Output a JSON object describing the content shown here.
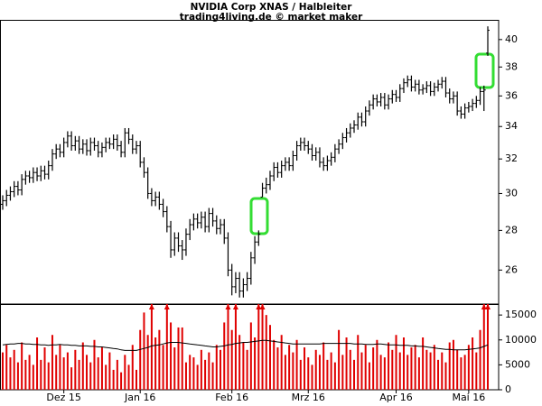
{
  "chart_data": [
    {
      "type": "ohlc",
      "title": "NVIDIA Corp XNAS / Halbleiter",
      "subtitle": "trading4living.de © market maker",
      "log": true,
      "color": "#000000",
      "ylim": [
        24.4,
        41.5
      ],
      "yticks": [
        26,
        28,
        30,
        32,
        34,
        36,
        38,
        40
      ],
      "open": [
        29.4,
        29.6,
        29.9,
        30.1,
        30.4,
        30.2,
        30.8,
        31.0,
        30.9,
        31.2,
        31.0,
        31.3,
        31.1,
        31.6,
        32.3,
        32.6,
        32.4,
        33.0,
        33.4,
        32.8,
        33.1,
        32.6,
        32.9,
        32.5,
        33.0,
        32.8,
        32.4,
        32.7,
        33.0,
        32.9,
        33.2,
        32.8,
        32.4,
        33.6,
        33.2,
        32.6,
        32.8,
        31.8,
        31.2,
        30.0,
        29.6,
        29.8,
        29.4,
        29.0,
        28.2,
        27.0,
        27.6,
        27.2,
        27.0,
        27.8,
        28.3,
        28.6,
        28.4,
        28.7,
        28.2,
        28.9,
        28.5,
        28.1,
        28.3,
        27.6,
        26.0,
        25.2,
        25.6,
        25.0,
        25.3,
        25.6,
        26.6,
        27.4,
        29.8,
        30.3,
        30.5,
        31.0,
        31.5,
        31.2,
        31.6,
        31.8,
        31.6,
        32.2,
        32.8,
        33.0,
        32.8,
        32.6,
        32.2,
        32.4,
        31.8,
        31.6,
        31.9,
        32.1,
        32.6,
        32.9,
        33.3,
        33.6,
        33.9,
        34.1,
        34.6,
        34.3,
        35.0,
        35.4,
        35.8,
        35.6,
        35.9,
        35.4,
        35.8,
        36.1,
        35.9,
        36.5,
        36.9,
        37.1,
        36.6,
        36.8,
        36.4,
        36.5,
        36.7,
        36.3,
        36.6,
        36.8,
        37.0,
        36.2,
        35.8,
        36.0,
        35.0,
        34.8,
        35.2,
        35.3,
        35.5,
        35.7,
        36.3,
        39.0
      ],
      "high": [
        29.9,
        30.2,
        30.4,
        30.7,
        30.7,
        31.1,
        31.3,
        31.3,
        31.5,
        31.5,
        31.6,
        31.6,
        31.9,
        32.6,
        32.9,
        32.9,
        33.3,
        33.7,
        33.7,
        33.4,
        33.4,
        33.2,
        33.2,
        33.3,
        33.3,
        33.1,
        33.0,
        33.3,
        33.3,
        33.5,
        33.5,
        33.1,
        33.9,
        33.9,
        33.5,
        33.1,
        33.1,
        32.1,
        31.5,
        30.3,
        30.1,
        30.1,
        29.7,
        29.3,
        28.5,
        27.9,
        27.9,
        27.5,
        28.1,
        28.6,
        28.9,
        28.9,
        29.0,
        29.0,
        29.2,
        29.2,
        28.8,
        28.6,
        28.6,
        27.9,
        26.3,
        25.9,
        25.9,
        25.6,
        25.9,
        26.9,
        27.7,
        28.0,
        30.6,
        30.9,
        31.3,
        31.8,
        31.8,
        31.9,
        32.1,
        32.1,
        32.5,
        33.1,
        33.3,
        33.3,
        33.1,
        32.9,
        32.7,
        32.7,
        32.1,
        32.2,
        32.4,
        32.9,
        33.2,
        33.6,
        33.9,
        34.2,
        34.4,
        34.9,
        34.9,
        35.3,
        35.7,
        36.1,
        36.1,
        36.2,
        36.2,
        36.1,
        36.4,
        36.4,
        36.8,
        37.2,
        37.4,
        37.4,
        37.1,
        37.1,
        36.8,
        37.0,
        37.0,
        36.9,
        37.1,
        37.3,
        37.3,
        36.5,
        36.3,
        36.3,
        35.3,
        35.5,
        35.6,
        35.8,
        36.0,
        36.6,
        36.7,
        41.0
      ],
      "low": [
        29.1,
        29.3,
        29.6,
        29.8,
        29.9,
        29.9,
        30.5,
        30.6,
        30.6,
        30.7,
        30.7,
        30.8,
        30.8,
        31.3,
        32.0,
        32.1,
        32.1,
        32.7,
        32.5,
        32.5,
        32.3,
        32.3,
        32.2,
        32.2,
        32.5,
        32.1,
        32.1,
        32.4,
        32.6,
        32.6,
        32.5,
        32.1,
        32.1,
        32.9,
        32.3,
        32.3,
        31.5,
        30.9,
        29.7,
        29.3,
        29.3,
        29.1,
        28.7,
        27.9,
        26.6,
        26.7,
        26.9,
        26.5,
        26.7,
        27.5,
        28.0,
        28.1,
        28.1,
        27.9,
        27.9,
        28.2,
        27.8,
        27.8,
        27.3,
        25.7,
        24.8,
        24.9,
        24.7,
        24.7,
        25.0,
        25.3,
        26.3,
        27.2,
        29.8,
        30.0,
        30.2,
        30.7,
        30.9,
        30.9,
        31.3,
        31.3,
        31.3,
        31.9,
        32.5,
        32.5,
        32.3,
        31.9,
        31.9,
        31.5,
        31.3,
        31.3,
        31.6,
        31.8,
        32.3,
        32.6,
        33.0,
        33.3,
        33.6,
        33.8,
        34.0,
        34.0,
        34.7,
        35.1,
        35.3,
        35.3,
        35.1,
        35.1,
        35.5,
        35.6,
        35.6,
        36.2,
        36.6,
        36.3,
        36.3,
        36.1,
        36.1,
        36.2,
        36.0,
        36.0,
        36.3,
        36.5,
        35.9,
        35.5,
        35.5,
        34.7,
        34.5,
        34.5,
        34.9,
        35.0,
        35.2,
        35.4,
        35.0,
        38.8
      ],
      "close": [
        29.6,
        29.9,
        30.1,
        30.4,
        30.2,
        30.8,
        31.0,
        30.9,
        31.2,
        31.0,
        31.3,
        31.1,
        31.6,
        32.3,
        32.6,
        32.4,
        33.0,
        33.4,
        32.8,
        33.1,
        32.6,
        32.9,
        32.5,
        33.0,
        32.8,
        32.4,
        32.7,
        33.0,
        32.9,
        33.2,
        32.8,
        32.4,
        33.6,
        33.2,
        32.6,
        32.8,
        31.8,
        31.2,
        30.0,
        29.6,
        29.8,
        29.4,
        29.0,
        28.2,
        27.0,
        27.6,
        27.2,
        27.0,
        27.8,
        28.3,
        28.6,
        28.4,
        28.7,
        28.2,
        28.9,
        28.5,
        28.1,
        28.3,
        27.6,
        26.0,
        25.2,
        25.6,
        25.0,
        25.3,
        25.6,
        26.6,
        27.4,
        27.8,
        30.3,
        30.5,
        31.0,
        31.5,
        31.2,
        31.6,
        31.8,
        31.6,
        32.2,
        32.8,
        33.0,
        32.8,
        32.6,
        32.2,
        32.4,
        31.8,
        31.6,
        31.9,
        32.1,
        32.6,
        32.9,
        33.3,
        33.6,
        33.9,
        34.1,
        34.6,
        34.3,
        35.0,
        35.4,
        35.8,
        35.6,
        35.9,
        35.4,
        35.8,
        36.1,
        35.9,
        36.5,
        36.9,
        37.1,
        36.6,
        36.8,
        36.4,
        36.5,
        36.7,
        36.3,
        36.6,
        36.8,
        37.0,
        36.2,
        35.8,
        36.0,
        35.0,
        34.8,
        35.2,
        35.3,
        35.5,
        35.7,
        36.3,
        36.4,
        40.7
      ]
    },
    {
      "type": "bar",
      "color": "#e00000",
      "average_color": "#000000",
      "ylim": [
        0,
        17200
      ],
      "yticks": [
        0,
        5000,
        10000,
        15000
      ],
      "categories": [
        null,
        null,
        null,
        null,
        null,
        null,
        null,
        null,
        null,
        null,
        null,
        null,
        null,
        null,
        null,
        null,
        "Dez 15",
        null,
        null,
        null,
        null,
        null,
        null,
        null,
        null,
        null,
        null,
        null,
        null,
        null,
        null,
        null,
        null,
        null,
        null,
        null,
        "Jan 16",
        null,
        null,
        null,
        null,
        null,
        null,
        null,
        null,
        null,
        null,
        null,
        null,
        null,
        null,
        null,
        null,
        null,
        null,
        null,
        null,
        null,
        null,
        null,
        "Feb 16",
        null,
        null,
        null,
        null,
        null,
        null,
        null,
        null,
        null,
        null,
        null,
        null,
        null,
        null,
        null,
        null,
        null,
        null,
        null,
        "Mrz 16",
        null,
        null,
        null,
        null,
        null,
        null,
        null,
        null,
        null,
        null,
        null,
        null,
        null,
        null,
        null,
        null,
        null,
        null,
        null,
        null,
        null,
        null,
        "Apr 16",
        null,
        null,
        null,
        null,
        null,
        null,
        null,
        null,
        null,
        null,
        null,
        null,
        null,
        null,
        null,
        null,
        null,
        null,
        "Mai 16",
        null,
        null,
        null,
        null,
        null
      ],
      "values": [
        7500,
        9000,
        6500,
        8000,
        5500,
        9500,
        6000,
        7000,
        5000,
        10500,
        6000,
        8500,
        5500,
        11000,
        7000,
        9000,
        6500,
        7500,
        4500,
        8000,
        6000,
        9500,
        7000,
        5500,
        10000,
        6500,
        8500,
        5000,
        7500,
        4000,
        6000,
        3500,
        7000,
        5000,
        9000,
        4000,
        12000,
        15500,
        11000,
        17500,
        10500,
        12000,
        9000,
        17500,
        13500,
        8500,
        12500,
        12500,
        5500,
        7000,
        6500,
        5000,
        8000,
        6000,
        7500,
        5500,
        9000,
        8000,
        13500,
        17500,
        12000,
        17500,
        11000,
        9500,
        8000,
        13500,
        10500,
        17500,
        17500,
        15000,
        13000,
        10000,
        8500,
        11000,
        7000,
        9000,
        7500,
        10000,
        6000,
        8500,
        6500,
        5000,
        8000,
        7000,
        9500,
        6000,
        7500,
        5500,
        12000,
        7000,
        10500,
        8000,
        6000,
        11000,
        7500,
        9000,
        5500,
        8500,
        10000,
        7000,
        6500,
        9500,
        8000,
        11000,
        7500,
        10500,
        7000,
        8500,
        9000,
        6500,
        10500,
        8000,
        7500,
        9000,
        6000,
        7500,
        5500,
        9500,
        10000,
        8000,
        6500,
        7000,
        9000,
        10500,
        7500,
        12000,
        17500,
        17500
      ],
      "average": [
        9000,
        9100,
        9200,
        9200,
        9300,
        9300,
        9200,
        9200,
        9100,
        9100,
        9000,
        9000,
        8900,
        9000,
        9000,
        9100,
        9000,
        9000,
        8900,
        8900,
        8800,
        8800,
        8800,
        8700,
        8700,
        8600,
        8600,
        8500,
        8400,
        8300,
        8200,
        8000,
        7900,
        7900,
        7900,
        7900,
        8100,
        8300,
        8500,
        8800,
        8900,
        9000,
        9200,
        9400,
        9500,
        9500,
        9500,
        9400,
        9300,
        9200,
        9100,
        9000,
        8900,
        8800,
        8700,
        8600,
        8600,
        8700,
        8800,
        9000,
        9100,
        9300,
        9400,
        9500,
        9500,
        9600,
        9700,
        9800,
        9900,
        9900,
        9800,
        9700,
        9600,
        9500,
        9400,
        9300,
        9200,
        9200,
        9200,
        9200,
        9200,
        9200,
        9200,
        9200,
        9300,
        9300,
        9300,
        9300,
        9300,
        9300,
        9300,
        9300,
        9200,
        9200,
        9200,
        9100,
        9100,
        9100,
        9200,
        9200,
        9100,
        9000,
        9000,
        9000,
        8900,
        8900,
        8900,
        8800,
        8800,
        8700,
        8700,
        8600,
        8500,
        8400,
        8300,
        8200,
        8100,
        8100,
        8000,
        8000,
        8000,
        8000,
        8100,
        8200,
        8300,
        8400,
        8700,
        9000
      ]
    }
  ]
}
